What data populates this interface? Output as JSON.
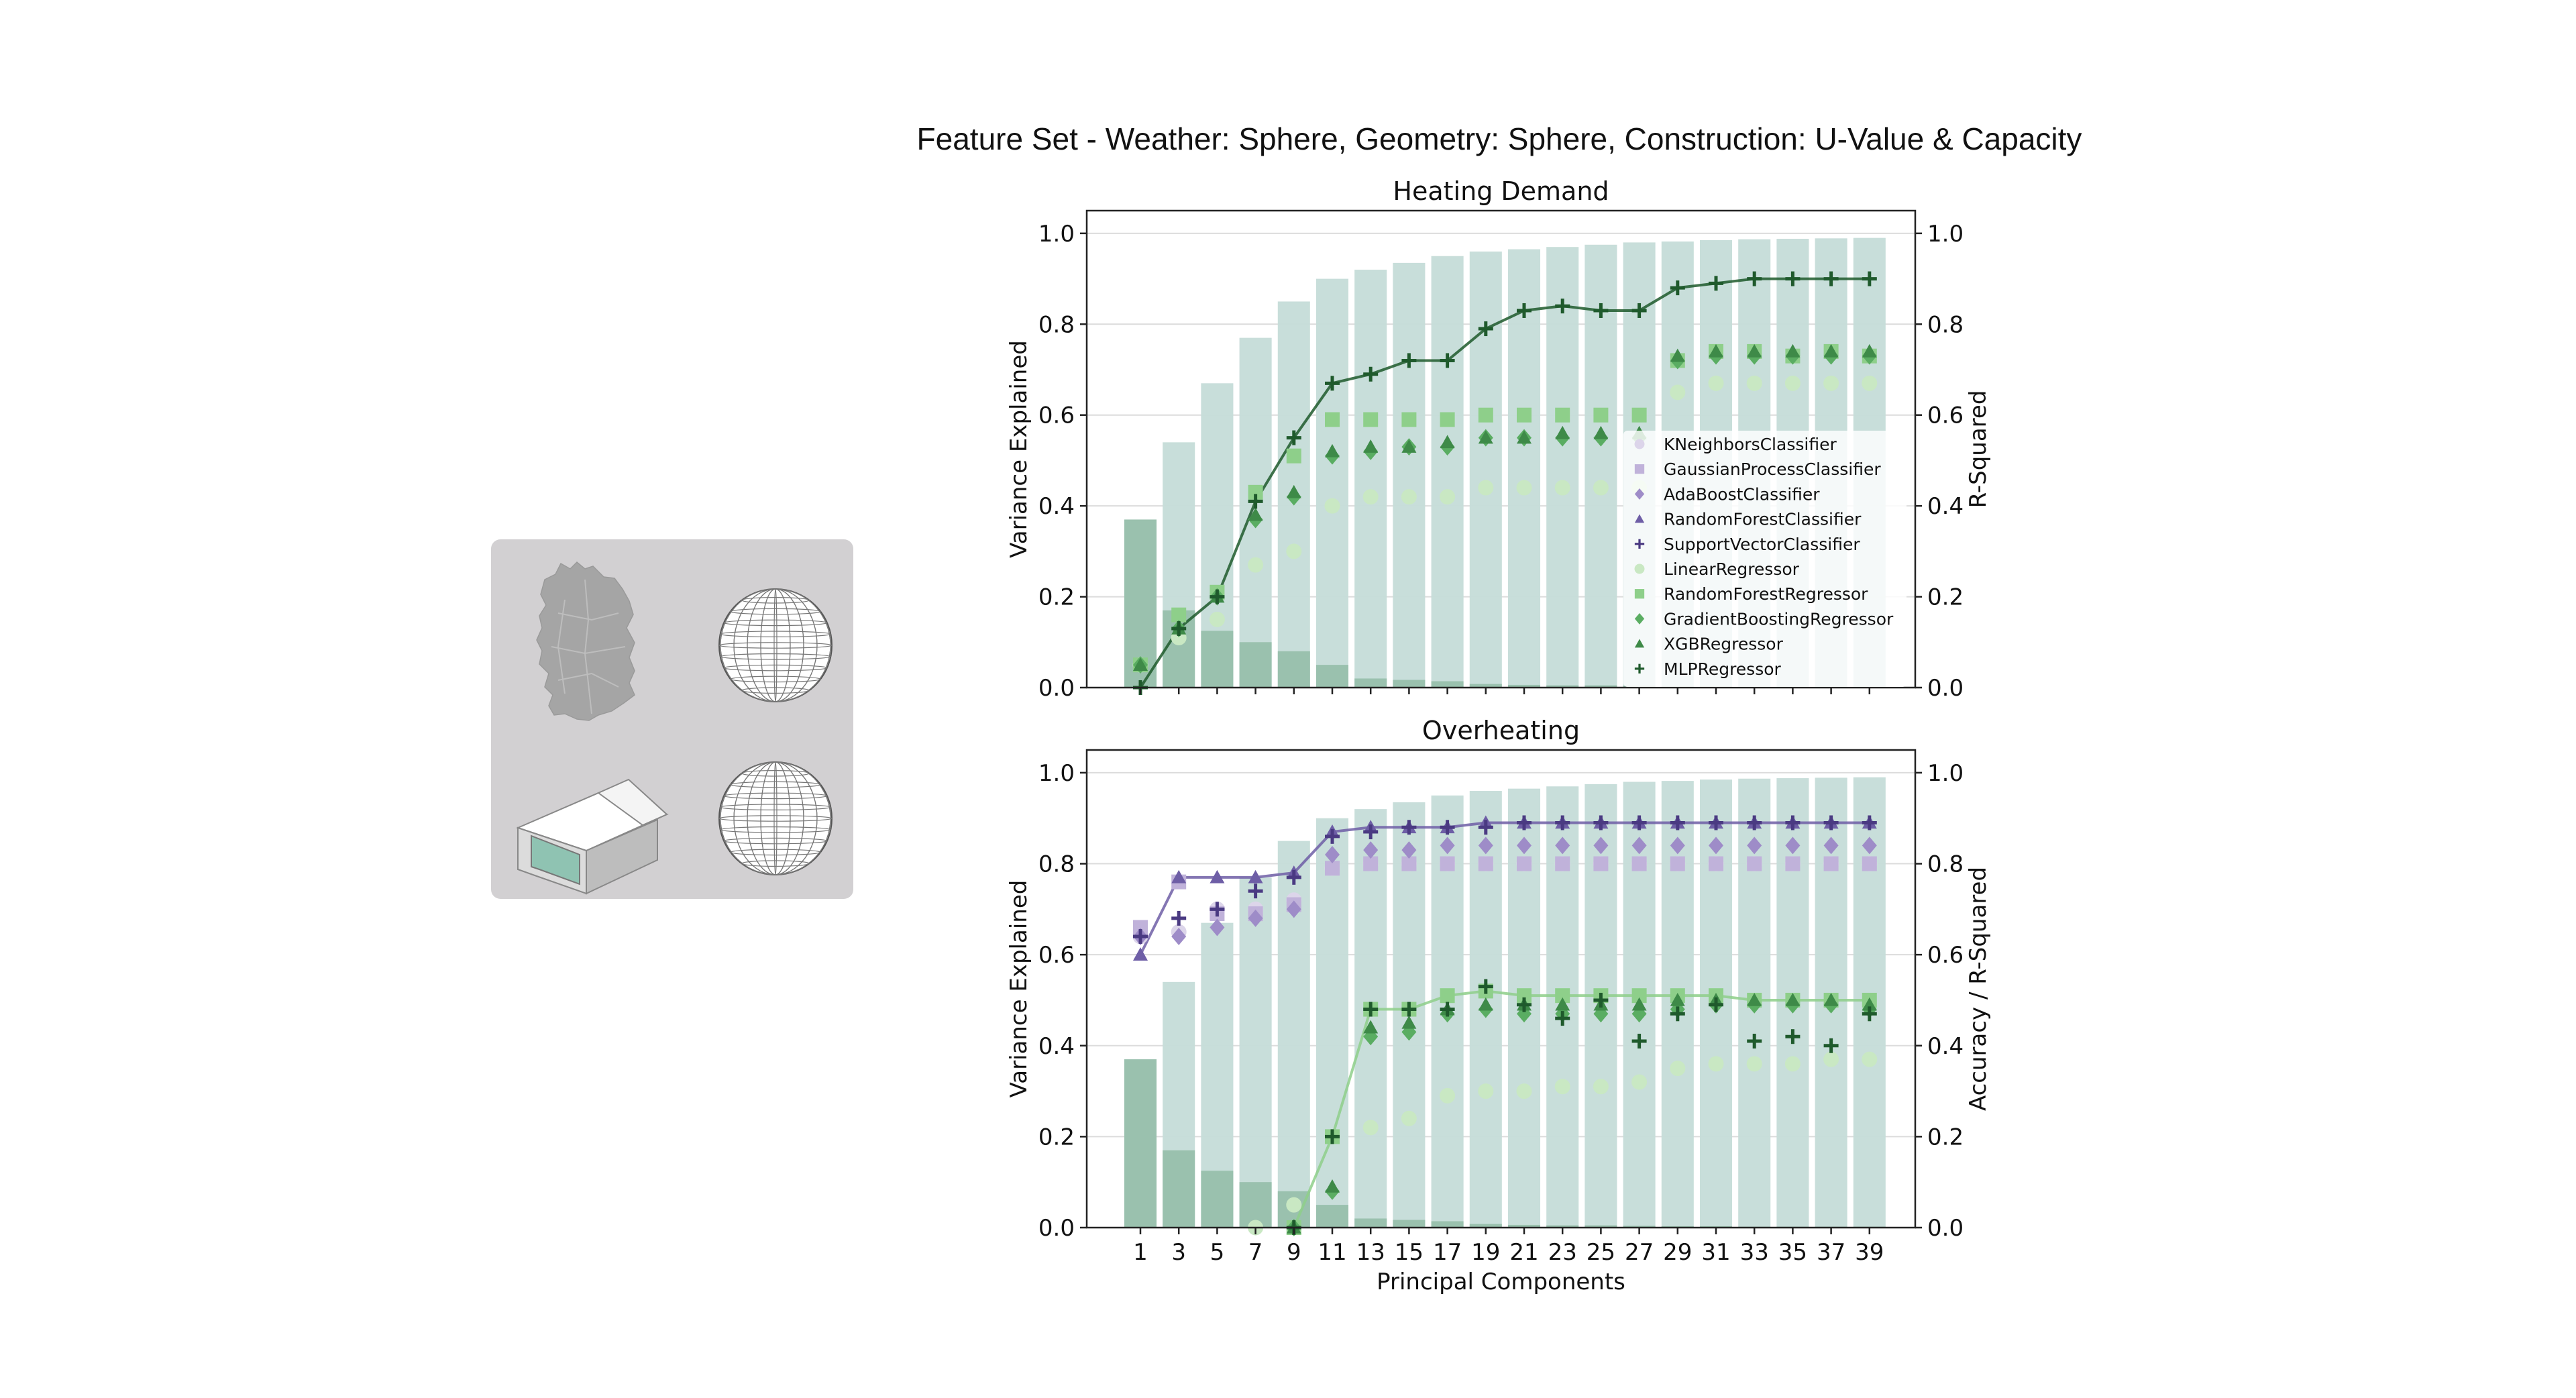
{
  "figure": {
    "title": "Feature Set - Weather: Sphere, Geometry: Sphere, Construction: U-Value & Capacity"
  },
  "icons": [
    "germany-map-icon",
    "sphere-icon",
    "building-box-icon",
    "sphere-icon"
  ],
  "colors": {
    "bar_cumulative": "#c5dcd8",
    "bar_individual": "#98bfac",
    "KNeighborsClassifier": "#dcd5ea",
    "GaussianProcessClassifier": "#c0b2da",
    "AdaBoostClassifier": "#9e8cc8",
    "RandomForestClassifier": "#6e5ea6",
    "SupportVectorClassifier": "#4a3a82",
    "LinearRegressor": "#c9e8c3",
    "RandomForestRegressor": "#8ecf8a",
    "GradientBoostingRegressor": "#5aad62",
    "XGBRegressor": "#3e8a48",
    "MLPRegressor": "#1f5a2c"
  },
  "chart_data": [
    {
      "type": "bar",
      "title": "Heating Demand",
      "xlabel": "",
      "ylabel": "Variance Explained",
      "y2label": "R-Squared",
      "ylim": [
        0,
        1.05
      ],
      "y2lim": [
        0,
        1.05
      ],
      "grid": true,
      "categories": [
        1,
        3,
        5,
        7,
        9,
        11,
        13,
        15,
        17,
        19,
        21,
        23,
        25,
        27,
        29,
        31,
        33,
        35,
        37,
        39
      ],
      "bar_series": [
        {
          "name": "cumulative",
          "values": [
            0.37,
            0.54,
            0.67,
            0.77,
            0.85,
            0.9,
            0.92,
            0.935,
            0.95,
            0.96,
            0.965,
            0.97,
            0.975,
            0.98,
            0.982,
            0.985,
            0.987,
            0.988,
            0.989,
            0.99
          ]
        },
        {
          "name": "individual",
          "values": [
            0.37,
            0.17,
            0.125,
            0.1,
            0.08,
            0.05,
            0.02,
            0.017,
            0.014,
            0.008,
            0.006,
            0.005,
            0.005,
            0.004,
            0.003,
            0.003,
            0.002,
            0.002,
            0.002,
            0.002
          ]
        }
      ],
      "line_series_key": "MLPRegressor",
      "legend": {
        "placement": "center-right",
        "entries": [
          "KNeighborsClassifier",
          "GaussianProcessClassifier",
          "AdaBoostClassifier",
          "RandomForestClassifier",
          "SupportVectorClassifier",
          "LinearRegressor",
          "RandomForestRegressor",
          "GradientBoostingRegressor",
          "XGBRegressor",
          "MLPRegressor"
        ]
      },
      "series": [
        {
          "name": "LinearRegressor",
          "marker": "circle",
          "values": [
            0.05,
            0.11,
            0.15,
            0.27,
            0.3,
            0.4,
            0.42,
            0.42,
            0.42,
            0.44,
            0.44,
            0.44,
            0.44,
            0.44,
            0.65,
            0.67,
            0.67,
            0.67,
            0.67,
            0.67
          ]
        },
        {
          "name": "RandomForestRegressor",
          "marker": "square",
          "values": [
            0.05,
            0.16,
            0.21,
            0.43,
            0.51,
            0.59,
            0.59,
            0.59,
            0.59,
            0.6,
            0.6,
            0.6,
            0.6,
            0.6,
            0.72,
            0.74,
            0.74,
            0.73,
            0.74,
            0.73
          ]
        },
        {
          "name": "GradientBoostingRegressor",
          "marker": "diamond",
          "values": [
            0.05,
            0.13,
            0.2,
            0.37,
            0.42,
            0.51,
            0.52,
            0.53,
            0.53,
            0.55,
            0.55,
            0.55,
            0.55,
            0.55,
            0.72,
            0.73,
            0.73,
            0.73,
            0.73,
            0.73
          ]
        },
        {
          "name": "XGBRegressor",
          "marker": "triangle",
          "values": [
            0.05,
            0.13,
            0.2,
            0.38,
            0.43,
            0.52,
            0.53,
            0.53,
            0.54,
            0.55,
            0.55,
            0.56,
            0.56,
            0.56,
            0.73,
            0.74,
            0.74,
            0.74,
            0.74,
            0.74
          ]
        },
        {
          "name": "MLPRegressor",
          "marker": "plus",
          "values": [
            0.0,
            0.13,
            0.2,
            0.41,
            0.55,
            0.67,
            0.69,
            0.72,
            0.72,
            0.79,
            0.83,
            0.84,
            0.83,
            0.83,
            0.88,
            0.89,
            0.9,
            0.9,
            0.9,
            0.9
          ]
        }
      ]
    },
    {
      "type": "bar",
      "title": "Overheating",
      "xlabel": "Principal Components",
      "ylabel": "Variance Explained",
      "y2label": "Accuracy / R-Squared",
      "ylim": [
        0,
        1.05
      ],
      "y2lim": [
        0,
        1.05
      ],
      "grid": true,
      "categories": [
        1,
        3,
        5,
        7,
        9,
        11,
        13,
        15,
        17,
        19,
        21,
        23,
        25,
        27,
        29,
        31,
        33,
        35,
        37,
        39
      ],
      "bar_series": [
        {
          "name": "cumulative",
          "values": [
            0.37,
            0.54,
            0.67,
            0.77,
            0.85,
            0.9,
            0.92,
            0.935,
            0.95,
            0.96,
            0.965,
            0.97,
            0.975,
            0.98,
            0.982,
            0.985,
            0.987,
            0.988,
            0.989,
            0.99
          ]
        },
        {
          "name": "individual",
          "values": [
            0.37,
            0.17,
            0.125,
            0.1,
            0.08,
            0.05,
            0.02,
            0.017,
            0.014,
            0.008,
            0.006,
            0.005,
            0.005,
            0.004,
            0.003,
            0.003,
            0.002,
            0.002,
            0.002,
            0.002
          ]
        }
      ],
      "line_series_key": [
        "RandomForestClassifier",
        "RandomForestRegressor"
      ],
      "series": [
        {
          "name": "KNeighborsClassifier",
          "marker": "circle",
          "values": [
            0.64,
            0.65,
            0.7,
            0.7,
            0.72,
            0.79,
            0.8,
            0.8,
            0.8,
            0.8,
            0.8,
            0.8,
            0.8,
            0.8,
            0.8,
            0.8,
            0.8,
            0.8,
            0.8,
            0.8
          ]
        },
        {
          "name": "GaussianProcessClassifier",
          "marker": "square",
          "values": [
            0.66,
            0.76,
            0.69,
            0.69,
            0.71,
            0.79,
            0.8,
            0.8,
            0.8,
            0.8,
            0.8,
            0.8,
            0.8,
            0.8,
            0.8,
            0.8,
            0.8,
            0.8,
            0.8,
            0.8
          ]
        },
        {
          "name": "AdaBoostClassifier",
          "marker": "diamond",
          "values": [
            0.64,
            0.64,
            0.66,
            0.68,
            0.7,
            0.82,
            0.83,
            0.83,
            0.84,
            0.84,
            0.84,
            0.84,
            0.84,
            0.84,
            0.84,
            0.84,
            0.84,
            0.84,
            0.84,
            0.84
          ]
        },
        {
          "name": "RandomForestClassifier",
          "marker": "triangle",
          "values": [
            0.6,
            0.77,
            0.77,
            0.77,
            0.78,
            0.87,
            0.88,
            0.88,
            0.88,
            0.89,
            0.89,
            0.89,
            0.89,
            0.89,
            0.89,
            0.89,
            0.89,
            0.89,
            0.89,
            0.89
          ]
        },
        {
          "name": "SupportVectorClassifier",
          "marker": "plus",
          "values": [
            0.64,
            0.68,
            0.7,
            0.74,
            0.77,
            0.86,
            0.87,
            0.88,
            0.88,
            0.88,
            0.89,
            0.89,
            0.89,
            0.89,
            0.89,
            0.89,
            0.89,
            0.89,
            0.89,
            0.89
          ]
        },
        {
          "name": "LinearRegressor",
          "marker": "circle",
          "values": [
            null,
            null,
            null,
            0.0,
            0.05,
            0.2,
            0.22,
            0.24,
            0.29,
            0.3,
            0.3,
            0.31,
            0.31,
            0.32,
            0.35,
            0.36,
            0.36,
            0.36,
            0.37,
            0.37
          ]
        },
        {
          "name": "RandomForestRegressor",
          "marker": "square",
          "values": [
            null,
            null,
            null,
            null,
            0.0,
            0.2,
            0.48,
            0.48,
            0.51,
            0.52,
            0.51,
            0.51,
            0.51,
            0.51,
            0.51,
            0.51,
            0.5,
            0.5,
            0.5,
            0.5
          ]
        },
        {
          "name": "GradientBoostingRegressor",
          "marker": "diamond",
          "values": [
            null,
            null,
            null,
            null,
            0.0,
            0.08,
            0.42,
            0.43,
            0.47,
            0.48,
            0.47,
            0.47,
            0.47,
            0.47,
            0.48,
            0.49,
            0.49,
            0.49,
            0.49,
            0.48
          ]
        },
        {
          "name": "XGBRegressor",
          "marker": "triangle",
          "values": [
            null,
            null,
            null,
            null,
            0.0,
            0.09,
            0.44,
            0.45,
            0.48,
            0.49,
            0.49,
            0.49,
            0.49,
            0.49,
            0.5,
            0.5,
            0.5,
            0.5,
            0.5,
            0.49
          ]
        },
        {
          "name": "MLPRegressor",
          "marker": "plus",
          "values": [
            null,
            null,
            null,
            null,
            0.0,
            0.2,
            0.48,
            0.48,
            0.48,
            0.53,
            0.49,
            0.46,
            0.5,
            0.41,
            0.47,
            0.49,
            0.41,
            0.42,
            0.4,
            0.47
          ]
        }
      ]
    }
  ]
}
